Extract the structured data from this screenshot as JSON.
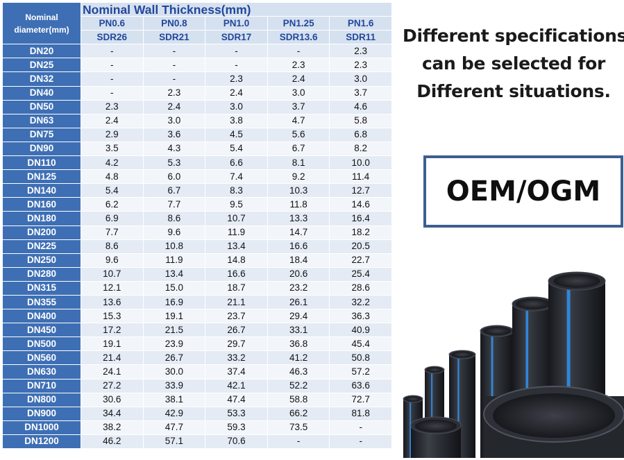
{
  "table": {
    "dn_header": "Nominal\ndiameter(mm)",
    "title": "Nominal Wall Thickness(mm)",
    "pressure_classes": [
      "PN0.6",
      "PN0.8",
      "PN1.0",
      "PN1.25",
      "PN1.6"
    ],
    "sdr_classes": [
      "SDR26",
      "SDR21",
      "SDR17",
      "SDR13.6",
      "SDR11"
    ],
    "rows": [
      {
        "dn": "DN20",
        "values": [
          "-",
          "-",
          "-",
          "-",
          "2.3"
        ]
      },
      {
        "dn": "DN25",
        "values": [
          "-",
          "-",
          "-",
          "2.3",
          "2.3"
        ]
      },
      {
        "dn": "DN32",
        "values": [
          "-",
          "-",
          "2.3",
          "2.4",
          "3.0"
        ]
      },
      {
        "dn": "DN40",
        "values": [
          "-",
          "2.3",
          "2.4",
          "3.0",
          "3.7"
        ]
      },
      {
        "dn": "DN50",
        "values": [
          "2.3",
          "2.4",
          "3.0",
          "3.7",
          "4.6"
        ]
      },
      {
        "dn": "DN63",
        "values": [
          "2.4",
          "3.0",
          "3.8",
          "4.7",
          "5.8"
        ]
      },
      {
        "dn": "DN75",
        "values": [
          "2.9",
          "3.6",
          "4.5",
          "5.6",
          "6.8"
        ]
      },
      {
        "dn": "DN90",
        "values": [
          "3.5",
          "4.3",
          "5.4",
          "6.7",
          "8.2"
        ]
      },
      {
        "dn": "DN110",
        "values": [
          "4.2",
          "5.3",
          "6.6",
          "8.1",
          "10.0"
        ]
      },
      {
        "dn": "DN125",
        "values": [
          "4.8",
          "6.0",
          "7.4",
          "9.2",
          "11.4"
        ]
      },
      {
        "dn": "DN140",
        "values": [
          "5.4",
          "6.7",
          "8.3",
          "10.3",
          "12.7"
        ]
      },
      {
        "dn": "DN160",
        "values": [
          "6.2",
          "7.7",
          "9.5",
          "11.8",
          "14.6"
        ]
      },
      {
        "dn": "DN180",
        "values": [
          "6.9",
          "8.6",
          "10.7",
          "13.3",
          "16.4"
        ]
      },
      {
        "dn": "DN200",
        "values": [
          "7.7",
          "9.6",
          "11.9",
          "14.7",
          "18.2"
        ]
      },
      {
        "dn": "DN225",
        "values": [
          "8.6",
          "10.8",
          "13.4",
          "16.6",
          "20.5"
        ]
      },
      {
        "dn": "DN250",
        "values": [
          "9.6",
          "11.9",
          "14.8",
          "18.4",
          "22.7"
        ]
      },
      {
        "dn": "DN280",
        "values": [
          "10.7",
          "13.4",
          "16.6",
          "20.6",
          "25.4"
        ]
      },
      {
        "dn": "DN315",
        "values": [
          "12.1",
          "15.0",
          "18.7",
          "23.2",
          "28.6"
        ]
      },
      {
        "dn": "DN355",
        "values": [
          "13.6",
          "16.9",
          "21.1",
          "26.1",
          "32.2"
        ]
      },
      {
        "dn": "DN400",
        "values": [
          "15.3",
          "19.1",
          "23.7",
          "29.4",
          "36.3"
        ]
      },
      {
        "dn": "DN450",
        "values": [
          "17.2",
          "21.5",
          "26.7",
          "33.1",
          "40.9"
        ]
      },
      {
        "dn": "DN500",
        "values": [
          "19.1",
          "23.9",
          "29.7",
          "36.8",
          "45.4"
        ]
      },
      {
        "dn": "DN560",
        "values": [
          "21.4",
          "26.7",
          "33.2",
          "41.2",
          "50.8"
        ]
      },
      {
        "dn": "DN630",
        "values": [
          "24.1",
          "30.0",
          "37.4",
          "46.3",
          "57.2"
        ]
      },
      {
        "dn": "DN710",
        "values": [
          "27.2",
          "33.9",
          "42.1",
          "52.2",
          "63.6"
        ]
      },
      {
        "dn": "DN800",
        "values": [
          "30.6",
          "38.1",
          "47.4",
          "58.8",
          "72.7"
        ]
      },
      {
        "dn": "DN900",
        "values": [
          "34.4",
          "42.9",
          "53.3",
          "66.2",
          "81.8"
        ]
      },
      {
        "dn": "DN1000",
        "values": [
          "38.2",
          "47.7",
          "59.3",
          "73.5",
          "-"
        ]
      },
      {
        "dn": "DN1200",
        "values": [
          "46.2",
          "57.1",
          "70.6",
          "-",
          "-"
        ]
      }
    ]
  },
  "note": {
    "lines": [
      "Different specifications",
      "can be selected for",
      "Different situations."
    ]
  },
  "badge": {
    "text": "OEM/OGM"
  },
  "colors": {
    "header_blue": "#3e6fb4",
    "header_light": "#d6e1f0",
    "header_text": "#22489a",
    "badge_border": "#3c5f90",
    "pipe_black": "#2a2d33",
    "pipe_stripe": "#2f86d9"
  },
  "image": {
    "icon": "black-hdpe-pipes-with-blue-stripes"
  }
}
